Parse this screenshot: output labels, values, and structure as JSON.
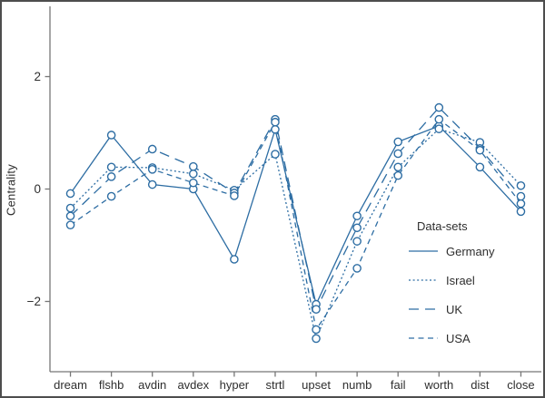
{
  "figure": {
    "background": "#ffffff",
    "border_color": "#4d4d4d",
    "axis_color": "#767676",
    "text_color": "#2e2e2e"
  },
  "chart_data": {
    "type": "line",
    "title": "",
    "ylabel": "Centrality",
    "xlabel": "",
    "grid": false,
    "line_color": "#2d6da3",
    "marker": "open-circle",
    "ylim": [
      -3.25,
      3.25
    ],
    "yticks": [
      {
        "value": 2,
        "label": "2"
      },
      {
        "value": 0,
        "label": "0"
      },
      {
        "value": -2,
        "label": "−2"
      }
    ],
    "categories": [
      "dream",
      "flshb",
      "avdin",
      "avdex",
      "hyper",
      "strtl",
      "upset",
      "numb",
      "fail",
      "worth",
      "dist",
      "close"
    ],
    "legend": {
      "title": "Data-sets",
      "position": "right-middle"
    },
    "series": [
      {
        "name": "Germany",
        "style": "solid",
        "values": [
          -0.08,
          0.96,
          0.08,
          0.0,
          -1.25,
          1.06,
          -2.05,
          -0.48,
          0.84,
          1.12,
          0.39,
          -0.4
        ]
      },
      {
        "name": "Israel",
        "style": "dotted",
        "values": [
          -0.34,
          0.39,
          0.38,
          0.27,
          -0.02,
          0.62,
          -2.66,
          -0.93,
          0.39,
          1.07,
          0.83,
          0.06
        ]
      },
      {
        "name": "UK",
        "style": "long-dash",
        "values": [
          -0.48,
          0.22,
          0.71,
          0.4,
          -0.07,
          1.24,
          -2.14,
          -0.69,
          0.63,
          1.45,
          0.72,
          -0.13
        ]
      },
      {
        "name": "USA",
        "style": "dash",
        "values": [
          -0.64,
          -0.13,
          0.35,
          0.11,
          -0.12,
          1.19,
          -2.5,
          -1.41,
          0.24,
          1.24,
          0.69,
          -0.26
        ]
      }
    ]
  }
}
